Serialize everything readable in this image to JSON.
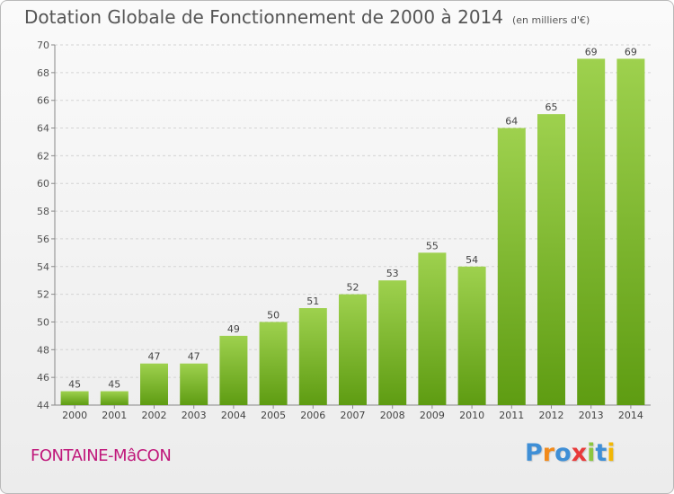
{
  "title": "Dotation Globale de Fonctionnement de 2000 à 2014",
  "subtitle": "(en milliers d'€)",
  "city": "FONTAINE-MâCON",
  "logo": {
    "text": "Proxiti",
    "letter_colors": [
      "#3f8fd6",
      "#f28a1a",
      "#3f8fd6",
      "#e83a3a",
      "#8cc63f",
      "#3f8fd6",
      "#f2b705"
    ]
  },
  "colors": {
    "bar_top": "#9ed14e",
    "bar_bottom": "#5e9c12",
    "city": "#c0187b"
  },
  "chart_data": {
    "type": "bar",
    "categories": [
      "2000",
      "2001",
      "2002",
      "2003",
      "2004",
      "2005",
      "2006",
      "2007",
      "2008",
      "2009",
      "2010",
      "2011",
      "2012",
      "2013",
      "2014"
    ],
    "values": [
      45,
      45,
      47,
      47,
      49,
      50,
      51,
      52,
      53,
      55,
      54,
      64,
      65,
      69,
      69
    ],
    "ylim": [
      44,
      70
    ],
    "yticks": [
      44,
      46,
      48,
      50,
      52,
      54,
      56,
      58,
      60,
      62,
      64,
      66,
      68,
      70
    ],
    "grid": true,
    "title": "Dotation Globale de Fonctionnement de 2000 à 2014",
    "subtitle": "(en milliers d'€)"
  }
}
